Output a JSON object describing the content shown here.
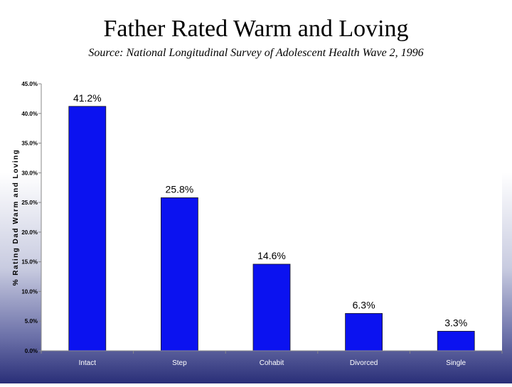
{
  "slide": {
    "title": "Father Rated Warm and Loving",
    "subtitle": "Source:  National Longitudinal Survey of Adolescent Health Wave 2, 1996"
  },
  "chart_data": {
    "type": "bar",
    "title": "",
    "xlabel": "",
    "ylabel": "% Rating Dad Warm and Loving",
    "categories": [
      "Intact",
      "Step",
      "Cohabit",
      "Divorced",
      "Single"
    ],
    "values": [
      41.2,
      25.8,
      14.6,
      6.3,
      3.3
    ],
    "data_labels": [
      "41.2%",
      "25.8%",
      "14.6%",
      "6.3%",
      "3.3%"
    ],
    "ylim": [
      0,
      45
    ],
    "yticks": [
      0,
      5,
      10,
      15,
      20,
      25,
      30,
      35,
      40,
      45
    ],
    "ytick_labels": [
      "0.0%",
      "5.0%",
      "10.0%",
      "15.0%",
      "20.0%",
      "25.0%",
      "30.0%",
      "35.0%",
      "40.0%",
      "45.0%"
    ],
    "grid": false,
    "bar_color": "#0b12f0",
    "plot_background": "#ffffff"
  }
}
